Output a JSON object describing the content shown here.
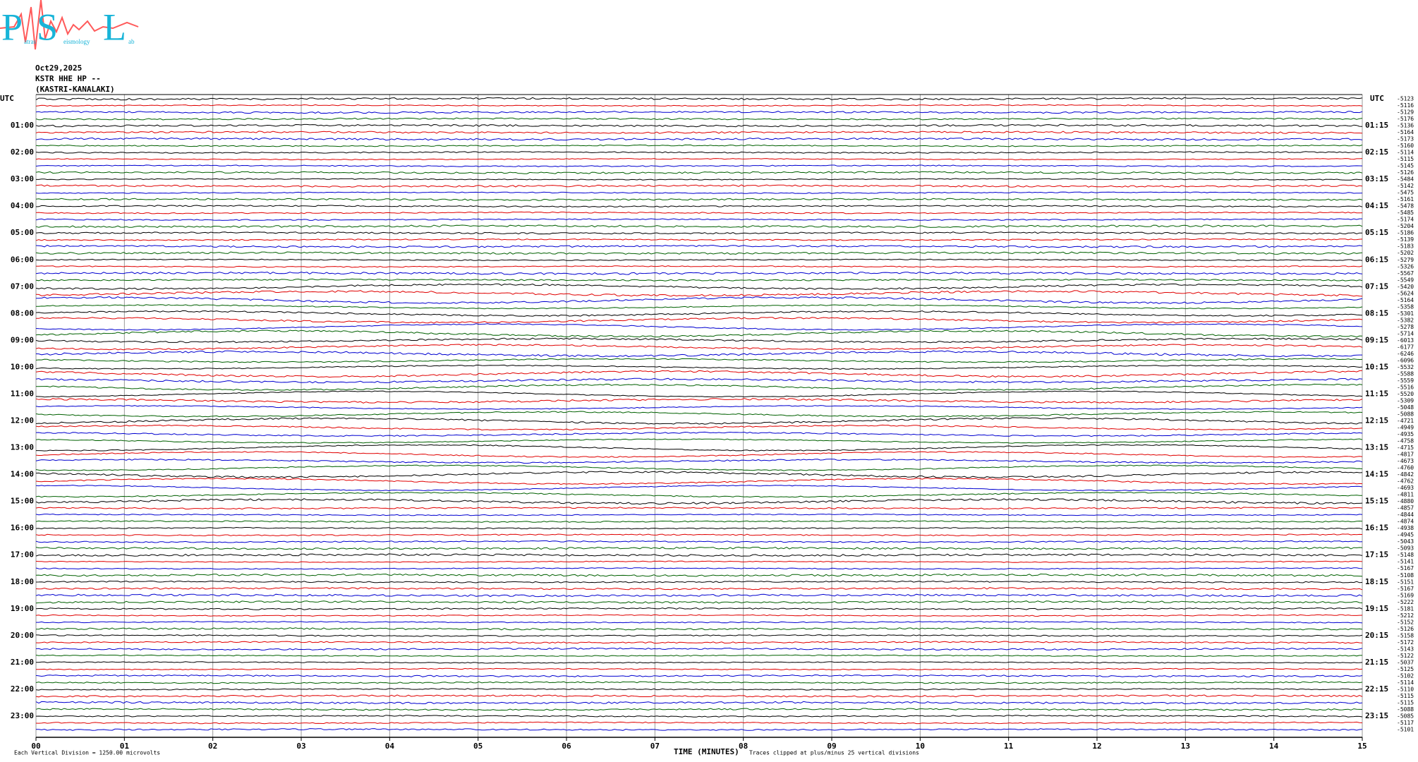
{
  "logo": {
    "letters": [
      "P",
      "S",
      "L"
    ],
    "words": [
      "atras",
      "eismology",
      "ab"
    ]
  },
  "header": {
    "date": "Oct29,2025",
    "station": "KSTR HHE HP --",
    "site": "(KASTRI-KANALAKI)"
  },
  "chart_data": {
    "type": "helicorder",
    "left_title": "UTC",
    "right_title": "UTC",
    "left_labels": [
      "01:00",
      "02:00",
      "03:00",
      "04:00",
      "05:00",
      "06:00",
      "07:00",
      "08:00",
      "09:00",
      "10:00",
      "11:00",
      "12:00",
      "13:00",
      "14:00",
      "15:00",
      "16:00",
      "17:00",
      "18:00",
      "19:00",
      "20:00",
      "21:00",
      "22:00",
      "23:00"
    ],
    "right_labels": [
      "01:15",
      "02:15",
      "03:15",
      "04:15",
      "05:15",
      "06:15",
      "07:15",
      "08:15",
      "09:15",
      "10:15",
      "11:15",
      "12:15",
      "13:15",
      "14:15",
      "15:15",
      "16:15",
      "17:15",
      "18:15",
      "19:15",
      "20:15",
      "21:15",
      "22:15",
      "23:15"
    ],
    "offsets": [
      -5123,
      -5116,
      -5129,
      -5176,
      -5136,
      -5164,
      -5173,
      -5160,
      -5114,
      -5115,
      -5145,
      -5126,
      -5484,
      -5142,
      -5475,
      -5161,
      -5478,
      -5485,
      -5174,
      -5204,
      -5186,
      -5139,
      -5183,
      -5202,
      -5279,
      -5326,
      -5567,
      -5549,
      -5420,
      -5624,
      -5164,
      -5358,
      -5301,
      -5382,
      -5278,
      -5714,
      -6013,
      -6177,
      -6246,
      -6096,
      -5532,
      -5588,
      -5559,
      -5516,
      -5520,
      -5309,
      -5048,
      -5088,
      -4721,
      -4949,
      -4935,
      -4758,
      -4715,
      -4817,
      -4673,
      -4760,
      -4842,
      -4762,
      -4693,
      -4811,
      -4880,
      -4857,
      -4844,
      -4874,
      -4938,
      -4945,
      -5043,
      -5093,
      -5148,
      -5141,
      -5167,
      -5108,
      -5151,
      -5167,
      -5169,
      -5222,
      -5181,
      -5212,
      -5152,
      -5126,
      -5158,
      -5172,
      -5143,
      -5122,
      -5037,
      -5125,
      -5102,
      -5114,
      -5110,
      -5115,
      -5115,
      -5088,
      -5085,
      -5117,
      -5101
    ],
    "colors": [
      "#000000",
      "#e00000",
      "#0000d0",
      "#006000"
    ],
    "xlim": [
      0,
      15
    ],
    "xticks": [
      {
        "value": 0,
        "label": "00"
      },
      {
        "value": 1,
        "label": "01"
      },
      {
        "value": 2,
        "label": "02"
      },
      {
        "value": 3,
        "label": "03"
      },
      {
        "value": 4,
        "label": "04"
      },
      {
        "value": 5,
        "label": "05"
      },
      {
        "value": 6,
        "label": "06"
      },
      {
        "value": 7,
        "label": "07"
      },
      {
        "value": 8,
        "label": "08"
      },
      {
        "value": 9,
        "label": "09"
      },
      10,
      11,
      12,
      13,
      14,
      15
    ],
    "xlabel": "TIME (MINUTES)",
    "notes": [
      "Each Vertical Division = 1250.00 microvolts",
      "Traces clipped at plus/minus 25 vertical divisions"
    ],
    "grid": true
  }
}
